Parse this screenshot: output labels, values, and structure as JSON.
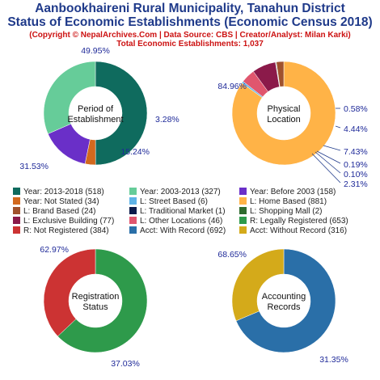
{
  "header": {
    "title_line1": "Aanbookhaireni Rural Municipality, Tanahun District",
    "title_line2": "Status of Economic Establishments (Economic Census 2018)",
    "copyright": "(Copyright © NepalArchives.Com | Data Source: CBS | Creator/Analyst: Milan Karki)",
    "total": "Total Economic Establishments: 1,037"
  },
  "chart_data": [
    {
      "type": "pie",
      "center_label": [
        "Period of",
        "Establishment"
      ],
      "slices": [
        {
          "label": "Year: 2013-2018",
          "value": 518,
          "pct": "49.95%",
          "color": "#0f6b5e"
        },
        {
          "label": "Year: Not Stated",
          "value": 34,
          "pct": "3.28%",
          "color": "#d2691e"
        },
        {
          "label": "Year: Before 2003",
          "value": 158,
          "pct": "15.24%",
          "color": "#6a2fc8"
        },
        {
          "label": "Year: 2003-2013",
          "value": 327,
          "pct": "31.53%",
          "color": "#66cc99"
        }
      ]
    },
    {
      "type": "pie",
      "center_label": [
        "Physical",
        "Location"
      ],
      "slices": [
        {
          "label": "L: Home Based",
          "value": 881,
          "pct": "84.96%",
          "color": "#ffb347"
        },
        {
          "label": "L: Street Based",
          "value": 6,
          "pct": "0.58%",
          "color": "#5fb3e6"
        },
        {
          "label": "L: Other Locations",
          "value": 46,
          "pct": "4.44%",
          "color": "#e0566e"
        },
        {
          "label": "L: Exclusive Building",
          "value": 77,
          "pct": "7.43%",
          "color": "#8b1a4a"
        },
        {
          "label": "L: Shopping Mall",
          "value": 2,
          "pct": "0.19%",
          "color": "#2e6b2e"
        },
        {
          "label": "L: Traditional Market",
          "value": 1,
          "pct": "0.10%",
          "color": "#0b1a4a"
        },
        {
          "label": "L: Brand Based",
          "value": 24,
          "pct": "2.31%",
          "color": "#a0522d"
        }
      ]
    },
    {
      "type": "pie",
      "center_label": [
        "Registration",
        "Status"
      ],
      "slices": [
        {
          "label": "R: Legally Registered",
          "value": 653,
          "pct": "62.97%",
          "color": "#2e9a4b"
        },
        {
          "label": "R: Not Registered",
          "value": 384,
          "pct": "37.03%",
          "color": "#cc3333"
        }
      ]
    },
    {
      "type": "pie",
      "center_label": [
        "Accounting",
        "Records"
      ],
      "slices": [
        {
          "label": "Acct: With Record",
          "value": 692,
          "pct": "68.65%",
          "color": "#2a6fa8"
        },
        {
          "label": "Acct: Without Record",
          "value": 316,
          "pct": "31.35%",
          "color": "#d4aa1a"
        }
      ]
    }
  ],
  "legend": [
    {
      "text": "Year: 2013-2018 (518)",
      "color": "#0f6b5e"
    },
    {
      "text": "Year: 2003-2013 (327)",
      "color": "#66cc99"
    },
    {
      "text": "Year: Before 2003 (158)",
      "color": "#6a2fc8"
    },
    {
      "text": "Year: Not Stated (34)",
      "color": "#d2691e"
    },
    {
      "text": "L: Street Based (6)",
      "color": "#5fb3e6"
    },
    {
      "text": "L: Home Based (881)",
      "color": "#ffb347"
    },
    {
      "text": "L: Brand Based (24)",
      "color": "#a0522d"
    },
    {
      "text": "L: Traditional Market (1)",
      "color": "#0b1a4a"
    },
    {
      "text": "L: Shopping Mall (2)",
      "color": "#2e6b2e"
    },
    {
      "text": "L: Exclusive Building (77)",
      "color": "#8b1a4a"
    },
    {
      "text": "L: Other Locations (46)",
      "color": "#e0566e"
    },
    {
      "text": "R: Legally Registered (653)",
      "color": "#2e9a4b"
    },
    {
      "text": "R: Not Registered (384)",
      "color": "#cc3333"
    },
    {
      "text": "Acct: With Record (692)",
      "color": "#2a6fa8"
    },
    {
      "text": "Acct: Without Record (316)",
      "color": "#d4aa1a"
    }
  ]
}
